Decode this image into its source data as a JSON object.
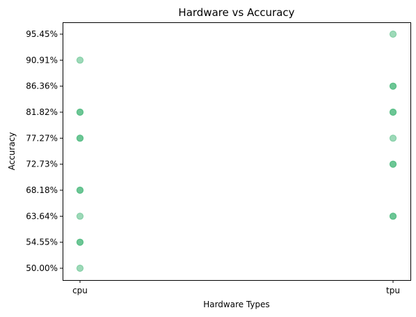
{
  "chart_data": {
    "type": "scatter",
    "title": "Hardware vs Accuracy",
    "xlabel": "Hardware Types",
    "ylabel": "Accuracy",
    "categories": [
      "cpu",
      "tpu"
    ],
    "y_categories": [
      "50.00%",
      "54.55%",
      "63.64%",
      "68.18%",
      "72.73%",
      "77.27%",
      "81.82%",
      "86.36%",
      "90.91%",
      "95.45%"
    ],
    "points": [
      {
        "x": "cpu",
        "y": "90.91%",
        "overlap": 1
      },
      {
        "x": "cpu",
        "y": "81.82%",
        "overlap": 2
      },
      {
        "x": "cpu",
        "y": "77.27%",
        "overlap": 2
      },
      {
        "x": "cpu",
        "y": "68.18%",
        "overlap": 2
      },
      {
        "x": "cpu",
        "y": "63.64%",
        "overlap": 1
      },
      {
        "x": "cpu",
        "y": "54.55%",
        "overlap": 2
      },
      {
        "x": "cpu",
        "y": "50.00%",
        "overlap": 1
      },
      {
        "x": "tpu",
        "y": "95.45%",
        "overlap": 1
      },
      {
        "x": "tpu",
        "y": "86.36%",
        "overlap": 2
      },
      {
        "x": "tpu",
        "y": "81.82%",
        "overlap": 2
      },
      {
        "x": "tpu",
        "y": "77.27%",
        "overlap": 1
      },
      {
        "x": "tpu",
        "y": "72.73%",
        "overlap": 2
      },
      {
        "x": "tpu",
        "y": "63.64%",
        "overlap": 2
      }
    ],
    "marker_color": "#3cb371",
    "marker_alpha": 0.5,
    "grid": false,
    "legend": "none"
  }
}
